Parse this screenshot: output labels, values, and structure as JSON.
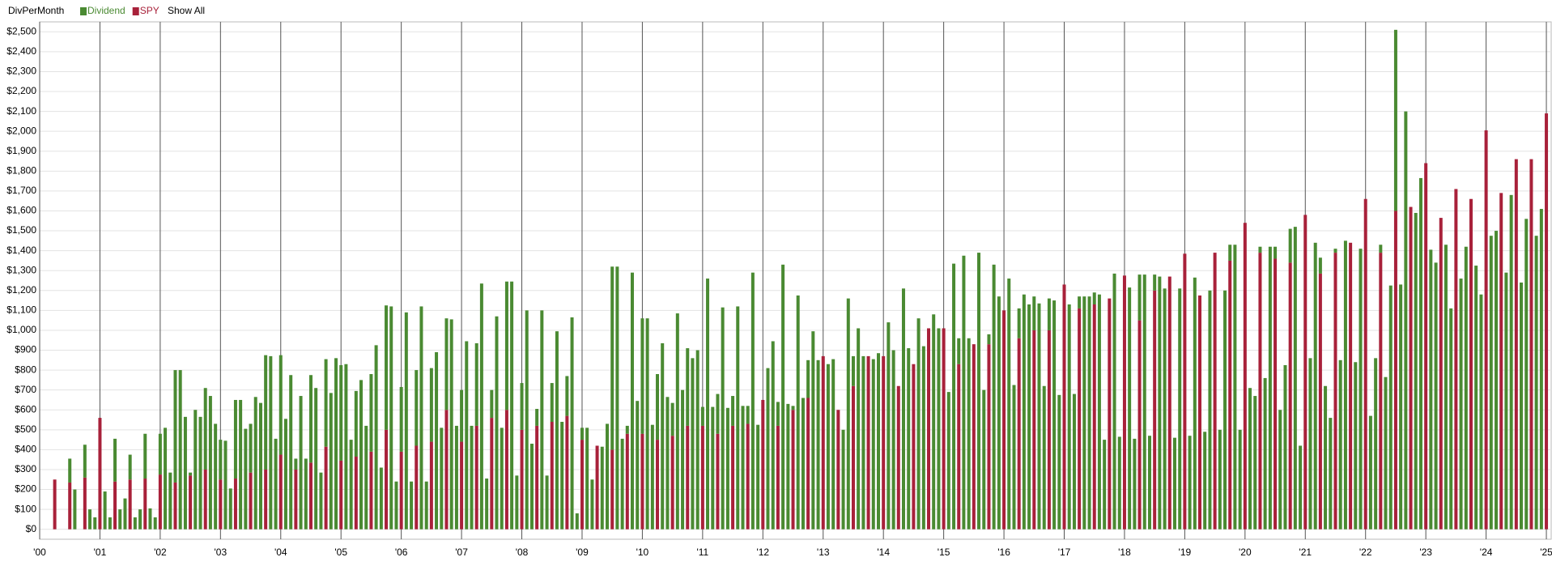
{
  "chart_data": {
    "type": "stacked-bar",
    "title": "DivPerMonth",
    "xlim": [
      2000,
      2025.08
    ],
    "ylim": [
      -50,
      2550
    ],
    "grid": true,
    "xticks": [
      {
        "value": 2000,
        "label": "'00"
      },
      {
        "value": 2001,
        "label": "'01"
      },
      {
        "value": 2002,
        "label": "'02"
      },
      {
        "value": 2003,
        "label": "'03"
      },
      {
        "value": 2004,
        "label": "'04"
      },
      {
        "value": 2005,
        "label": "'05"
      },
      {
        "value": 2006,
        "label": "'06"
      },
      {
        "value": 2007,
        "label": "'07"
      },
      {
        "value": 2008,
        "label": "'08"
      },
      {
        "value": 2009,
        "label": "'09"
      },
      {
        "value": 2010,
        "label": "'10"
      },
      {
        "value": 2011,
        "label": "'11"
      },
      {
        "value": 2012,
        "label": "'12"
      },
      {
        "value": 2013,
        "label": "'13"
      },
      {
        "value": 2014,
        "label": "'14"
      },
      {
        "value": 2015,
        "label": "'15"
      },
      {
        "value": 2016,
        "label": "'16"
      },
      {
        "value": 2017,
        "label": "'17"
      },
      {
        "value": 2018,
        "label": "'18"
      },
      {
        "value": 2019,
        "label": "'19"
      },
      {
        "value": 2020,
        "label": "'20"
      },
      {
        "value": 2021,
        "label": "'21"
      },
      {
        "value": 2022,
        "label": "'22"
      },
      {
        "value": 2023,
        "label": "'23"
      },
      {
        "value": 2024,
        "label": "'24"
      },
      {
        "value": 2025,
        "label": "'25"
      }
    ],
    "yticks": [
      {
        "value": 0,
        "label": "$0"
      },
      {
        "value": 100,
        "label": "$100"
      },
      {
        "value": 200,
        "label": "$200"
      },
      {
        "value": 300,
        "label": "$300"
      },
      {
        "value": 400,
        "label": "$400"
      },
      {
        "value": 500,
        "label": "$500"
      },
      {
        "value": 600,
        "label": "$600"
      },
      {
        "value": 700,
        "label": "$700"
      },
      {
        "value": 800,
        "label": "$800"
      },
      {
        "value": 900,
        "label": "$900"
      },
      {
        "value": 1000,
        "label": "$1,000"
      },
      {
        "value": 1100,
        "label": "$1,100"
      },
      {
        "value": 1200,
        "label": "$1,200"
      },
      {
        "value": 1300,
        "label": "$1,300"
      },
      {
        "value": 1400,
        "label": "$1,400"
      },
      {
        "value": 1500,
        "label": "$1,500"
      },
      {
        "value": 1600,
        "label": "$1,600"
      },
      {
        "value": 1700,
        "label": "$1,700"
      },
      {
        "value": 1800,
        "label": "$1,800"
      },
      {
        "value": 1900,
        "label": "$1,900"
      },
      {
        "value": 2000,
        "label": "$2,000"
      },
      {
        "value": 2100,
        "label": "$2,100"
      },
      {
        "value": 2200,
        "label": "$2,200"
      },
      {
        "value": 2300,
        "label": "$2,300"
      },
      {
        "value": 2400,
        "label": "$2,400"
      },
      {
        "value": 2500,
        "label": "$2,500"
      }
    ],
    "x": [
      2000.25,
      2000.333,
      2000.417,
      2000.5,
      2000.583,
      2000.667,
      2000.75,
      2000.833,
      2000.917,
      2001,
      2001.083,
      2001.167,
      2001.25,
      2001.333,
      2001.417,
      2001.5,
      2001.583,
      2001.667,
      2001.75,
      2001.833,
      2001.917,
      2002,
      2002.083,
      2002.167,
      2002.25,
      2002.333,
      2002.417,
      2002.5,
      2002.583,
      2002.667,
      2002.75,
      2002.833,
      2002.917,
      2003,
      2003.083,
      2003.167,
      2003.25,
      2003.333,
      2003.417,
      2003.5,
      2003.583,
      2003.667,
      2003.75,
      2003.833,
      2003.917,
      2004,
      2004.083,
      2004.167,
      2004.25,
      2004.333,
      2004.417,
      2004.5,
      2004.583,
      2004.667,
      2004.75,
      2004.833,
      2004.917,
      2005,
      2005.083,
      2005.167,
      2005.25,
      2005.333,
      2005.417,
      2005.5,
      2005.583,
      2005.667,
      2005.75,
      2005.833,
      2005.917,
      2006,
      2006.083,
      2006.167,
      2006.25,
      2006.333,
      2006.417,
      2006.5,
      2006.583,
      2006.667,
      2006.75,
      2006.833,
      2006.917,
      2007,
      2007.083,
      2007.167,
      2007.25,
      2007.333,
      2007.417,
      2007.5,
      2007.583,
      2007.667,
      2007.75,
      2007.833,
      2007.917,
      2008,
      2008.083,
      2008.167,
      2008.25,
      2008.333,
      2008.417,
      2008.5,
      2008.583,
      2008.667,
      2008.75,
      2008.833,
      2008.917,
      2009,
      2009.083,
      2009.167,
      2009.25,
      2009.333,
      2009.417,
      2009.5,
      2009.583,
      2009.667,
      2009.75,
      2009.833,
      2009.917,
      2010,
      2010.083,
      2010.167,
      2010.25,
      2010.333,
      2010.417,
      2010.5,
      2010.583,
      2010.667,
      2010.75,
      2010.833,
      2010.917,
      2011,
      2011.083,
      2011.167,
      2011.25,
      2011.333,
      2011.417,
      2011.5,
      2011.583,
      2011.667,
      2011.75,
      2011.833,
      2011.917,
      2012,
      2012.083,
      2012.167,
      2012.25,
      2012.333,
      2012.417,
      2012.5,
      2012.583,
      2012.667,
      2012.75,
      2012.833,
      2012.917,
      2013,
      2013.083,
      2013.167,
      2013.25,
      2013.333,
      2013.417,
      2013.5,
      2013.583,
      2013.667,
      2013.75,
      2013.833,
      2013.917,
      2014,
      2014.083,
      2014.167,
      2014.25,
      2014.333,
      2014.417,
      2014.5,
      2014.583,
      2014.667,
      2014.75,
      2014.833,
      2014.917,
      2015,
      2015.083,
      2015.167,
      2015.25,
      2015.333,
      2015.417,
      2015.5,
      2015.583,
      2015.667,
      2015.75,
      2015.833,
      2015.917,
      2016,
      2016.083,
      2016.167,
      2016.25,
      2016.333,
      2016.417,
      2016.5,
      2016.583,
      2016.667,
      2016.75,
      2016.833,
      2016.917,
      2017,
      2017.083,
      2017.167,
      2017.25,
      2017.333,
      2017.417,
      2017.5,
      2017.583,
      2017.667,
      2017.75,
      2017.833,
      2017.917,
      2018,
      2018.083,
      2018.167,
      2018.25,
      2018.333,
      2018.417,
      2018.5,
      2018.583,
      2018.667,
      2018.75,
      2018.833,
      2018.917,
      2019,
      2019.083,
      2019.167,
      2019.25,
      2019.333,
      2019.417,
      2019.5,
      2019.583,
      2019.667,
      2019.75,
      2019.833,
      2019.917,
      2020,
      2020.083,
      2020.167,
      2020.25,
      2020.333,
      2020.417,
      2020.5,
      2020.583,
      2020.667,
      2020.75,
      2020.833,
      2020.917,
      2021,
      2021.083,
      2021.167,
      2021.25,
      2021.333,
      2021.417,
      2021.5,
      2021.583,
      2021.667,
      2021.75,
      2021.833,
      2021.917,
      2022,
      2022.083,
      2022.167,
      2022.25,
      2022.333,
      2022.417,
      2022.5,
      2022.583,
      2022.667,
      2022.75,
      2022.833,
      2022.917,
      2023,
      2023.083,
      2023.167,
      2023.25,
      2023.333,
      2023.417,
      2023.5,
      2023.583,
      2023.667,
      2023.75,
      2023.833,
      2023.917,
      2024,
      2024.083,
      2024.167,
      2024.25,
      2024.333,
      2024.417,
      2024.5,
      2024.583,
      2024.667,
      2024.75,
      2024.833,
      2024.917,
      2025
    ],
    "series": [
      {
        "name": "SPY",
        "color": "#a8213a",
        "values": [
          250,
          0,
          0,
          235,
          0,
          0,
          260,
          0,
          0,
          560,
          0,
          0,
          240,
          0,
          0,
          250,
          0,
          0,
          255,
          0,
          0,
          275,
          0,
          0,
          235,
          0,
          0,
          270,
          0,
          0,
          300,
          0,
          0,
          250,
          0,
          0,
          255,
          0,
          0,
          285,
          0,
          0,
          300,
          0,
          0,
          375,
          0,
          0,
          300,
          0,
          0,
          335,
          0,
          0,
          415,
          0,
          0,
          345,
          0,
          0,
          365,
          0,
          0,
          390,
          0,
          0,
          500,
          0,
          0,
          390,
          0,
          0,
          420,
          0,
          0,
          440,
          0,
          0,
          600,
          0,
          0,
          440,
          0,
          0,
          520,
          0,
          0,
          560,
          0,
          0,
          600,
          0,
          0,
          500,
          0,
          0,
          520,
          0,
          0,
          540,
          0,
          0,
          570,
          0,
          0,
          450,
          0,
          0,
          420,
          0,
          0,
          400,
          0,
          0,
          480,
          0,
          0,
          480,
          0,
          0,
          450,
          0,
          0,
          470,
          0,
          0,
          520,
          0,
          0,
          520,
          0,
          0,
          480,
          0,
          0,
          520,
          0,
          0,
          530,
          0,
          0,
          650,
          0,
          0,
          520,
          0,
          0,
          600,
          0,
          0,
          660,
          0,
          0,
          870,
          0,
          0,
          600,
          0,
          0,
          720,
          0,
          0,
          870,
          0,
          0,
          870,
          0,
          0,
          720,
          0,
          0,
          830,
          0,
          0,
          1010,
          0,
          0,
          1010,
          0,
          0,
          830,
          0,
          0,
          930,
          0,
          0,
          930,
          0,
          0,
          1100,
          0,
          0,
          960,
          0,
          0,
          1000,
          0,
          0,
          1000,
          0,
          0,
          1230,
          0,
          0,
          1110,
          0,
          0,
          1130,
          0,
          0,
          1160,
          0,
          0,
          1275,
          0,
          0,
          1050,
          0,
          0,
          1200,
          0,
          0,
          1270,
          0,
          0,
          1385,
          0,
          0,
          1175,
          0,
          0,
          1390,
          0,
          0,
          1350,
          0,
          0,
          1540,
          0,
          0,
          1390,
          0,
          0,
          1360,
          0,
          0,
          1340,
          0,
          0,
          1580,
          0,
          0,
          1285,
          0,
          0,
          1390,
          0,
          0,
          1440,
          0,
          0,
          1660,
          0,
          0,
          1390,
          0,
          0,
          1600,
          0,
          0,
          1620,
          0,
          0,
          1840,
          0,
          0,
          1565,
          0,
          0,
          1710,
          0,
          0,
          1660,
          0,
          0,
          2005,
          0,
          0,
          1690,
          0,
          0,
          1860,
          0,
          0,
          1860,
          0,
          0,
          2090
        ]
      },
      {
        "name": "Dividend",
        "color": "#4a8a32",
        "values": [
          0,
          0,
          0,
          120,
          200,
          0,
          165,
          100,
          60,
          0,
          190,
          60,
          215,
          100,
          155,
          125,
          60,
          100,
          225,
          105,
          60,
          205,
          510,
          285,
          565,
          800,
          565,
          15,
          600,
          565,
          410,
          670,
          530,
          200,
          445,
          205,
          395,
          650,
          505,
          245,
          665,
          635,
          575,
          870,
          455,
          500,
          555,
          775,
          55,
          670,
          355,
          440,
          710,
          285,
          440,
          685,
          860,
          480,
          830,
          450,
          330,
          750,
          520,
          390,
          925,
          310,
          625,
          1120,
          240,
          325,
          1090,
          240,
          380,
          1120,
          240,
          370,
          890,
          510,
          460,
          1055,
          520,
          260,
          945,
          520,
          415,
          1235,
          255,
          140,
          1070,
          510,
          645,
          1245,
          270,
          235,
          1100,
          430,
          85,
          1100,
          270,
          195,
          995,
          540,
          200,
          1065,
          80,
          60,
          510,
          250,
          0,
          415,
          530,
          920,
          1320,
          455,
          40,
          1290,
          645,
          580,
          1060,
          525,
          330,
          935,
          665,
          165,
          1085,
          700,
          390,
          860,
          900,
          95,
          1260,
          615,
          200,
          1115,
          610,
          150,
          1120,
          620,
          90,
          1290,
          525,
          0,
          810,
          945,
          120,
          1330,
          630,
          20,
          1175,
          660,
          190,
          995,
          850,
          0,
          830,
          855,
          0,
          500,
          1160,
          150,
          1010,
          870,
          0,
          855,
          885,
          0,
          1040,
          900,
          0,
          1210,
          910,
          0,
          1060,
          920,
          0,
          1080,
          1010,
          0,
          690,
          1335,
          130,
          1375,
          960,
          0,
          1390,
          700,
          50,
          1330,
          1170,
          0,
          1260,
          725,
          150,
          1180,
          1130,
          170,
          1135,
          720,
          160,
          1150,
          675,
          0,
          1130,
          680,
          60,
          1170,
          1170,
          60,
          1180,
          450,
          0,
          1285,
          465,
          0,
          1215,
          455,
          230,
          1280,
          470,
          80,
          1270,
          1210,
          0,
          460,
          1210,
          0,
          470,
          1265,
          0,
          490,
          1200,
          0,
          500,
          1200,
          80,
          1430,
          500,
          0,
          710,
          670,
          30,
          760,
          1420,
          60,
          600,
          825,
          170,
          1520,
          420,
          0,
          860,
          1440,
          80,
          720,
          560,
          20,
          850,
          1450,
          0,
          840,
          1410,
          0,
          570,
          860,
          40,
          765,
          1225,
          910,
          1230,
          2100,
          0,
          1590,
          1765,
          0,
          1405,
          1340,
          0,
          1430,
          1110,
          0,
          1260,
          1420,
          0,
          1325,
          1180,
          0,
          1475,
          1500,
          0,
          1290,
          1680,
          0,
          1240,
          1560,
          0,
          1475,
          1610,
          0
        ]
      }
    ]
  },
  "controls": {
    "show_all": "Show All"
  }
}
